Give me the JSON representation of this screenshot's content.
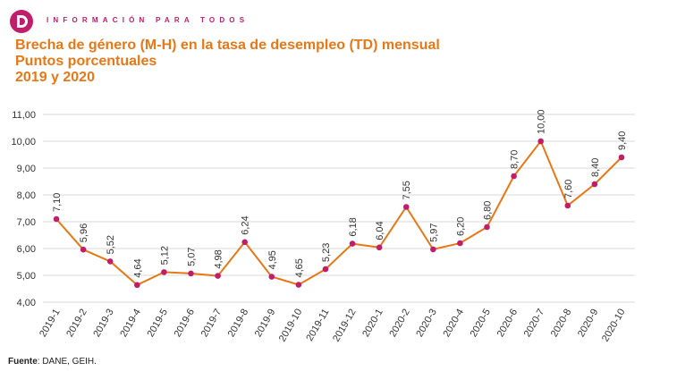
{
  "header": {
    "tagline": "INFORMACIÓN PARA TODOS",
    "brand_color": "#c21d6b"
  },
  "title_lines": [
    "Brecha de género (M-H) en la tasa de desempleo (TD) mensual",
    "Puntos porcentuales",
    "2019 y 2020"
  ],
  "source": {
    "label": "Fuente",
    "text": ": DANE, GEIH."
  },
  "chart_data": {
    "type": "line",
    "categories": [
      "2019-1",
      "2019-2",
      "2019-3",
      "2019-4",
      "2019-5",
      "2019-6",
      "2019-7",
      "2019-8",
      "2019-9",
      "2019-10",
      "2019-11",
      "2019-12",
      "2020-1",
      "2020-2",
      "2020-3",
      "2020-4",
      "2020-5",
      "2020-6",
      "2020-7",
      "2020-8",
      "2020-9",
      "2020-10"
    ],
    "series": [
      {
        "values": [
          7.1,
          5.96,
          5.52,
          4.64,
          5.12,
          5.07,
          4.98,
          6.24,
          4.95,
          4.65,
          5.23,
          6.18,
          6.04,
          7.55,
          5.97,
          6.2,
          6.8,
          8.7,
          10.0,
          7.6,
          8.4,
          9.4
        ],
        "labels": [
          "7,10",
          "5,96",
          "5,52",
          "4,64",
          "5,12",
          "5,07",
          "4,98",
          "6,24",
          "4,95",
          "4,65",
          "5,23",
          "6,18",
          "6,04",
          "7,55",
          "5,97",
          "6,20",
          "6,80",
          "8,70",
          "10,00",
          "7,60",
          "8,40",
          "9,40"
        ],
        "line_color": "#e67817",
        "marker_color": "#c21d6b"
      }
    ],
    "ylim": [
      4,
      11
    ],
    "yticks": [
      "4,00",
      "5,00",
      "6,00",
      "7,00",
      "8,00",
      "9,00",
      "10,00",
      "11,00"
    ],
    "grid": true,
    "title": "",
    "xlabel": "",
    "ylabel": ""
  }
}
